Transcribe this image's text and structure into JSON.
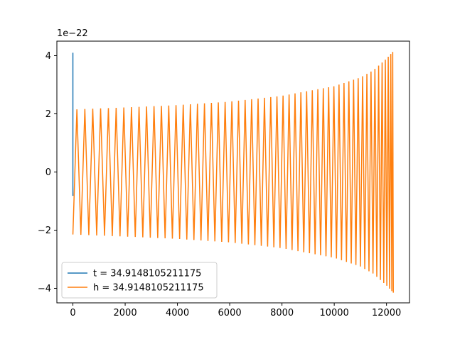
{
  "chart_data": {
    "type": "line",
    "title": "",
    "xlabel": "",
    "ylabel": "",
    "y_offset_label": "1e−22",
    "xlim": [
      -613,
      12880
    ],
    "ylim": [
      -4.5e-22,
      4.5e-22
    ],
    "x_ticks": [
      0,
      2000,
      4000,
      6000,
      8000,
      10000,
      12000
    ],
    "x_tick_labels": [
      "0",
      "2000",
      "4000",
      "6000",
      "8000",
      "10000",
      "12000"
    ],
    "y_ticks": [
      -4e-22,
      -2e-22,
      0,
      2e-22,
      4e-22
    ],
    "y_tick_labels": [
      "−4",
      "−2",
      "0",
      "2",
      "4"
    ],
    "grid": false,
    "legend_position": "lower-left",
    "series": [
      {
        "name": "t = 34.9148105211175",
        "color": "#1f77b4",
        "x": [
          0,
          0,
          0
        ],
        "values": [
          -8.2e-23,
          4.1e-22,
          -8.2e-23
        ]
      },
      {
        "name": "h = 34.9148105211175",
        "color": "#ff7f0e",
        "x_start": 0,
        "x_end": 12260,
        "cycles": 108,
        "envelope_x": [
          0,
          2000,
          4000,
          6000,
          8000,
          10000,
          11000,
          11500,
          12000,
          12260
        ],
        "envelope_amplitude": [
          2.15e-22,
          2.22e-22,
          2.3e-22,
          2.42e-22,
          2.62e-22,
          2.95e-22,
          3.25e-22,
          3.5e-22,
          3.9e-22,
          4.15e-22
        ]
      }
    ]
  }
}
